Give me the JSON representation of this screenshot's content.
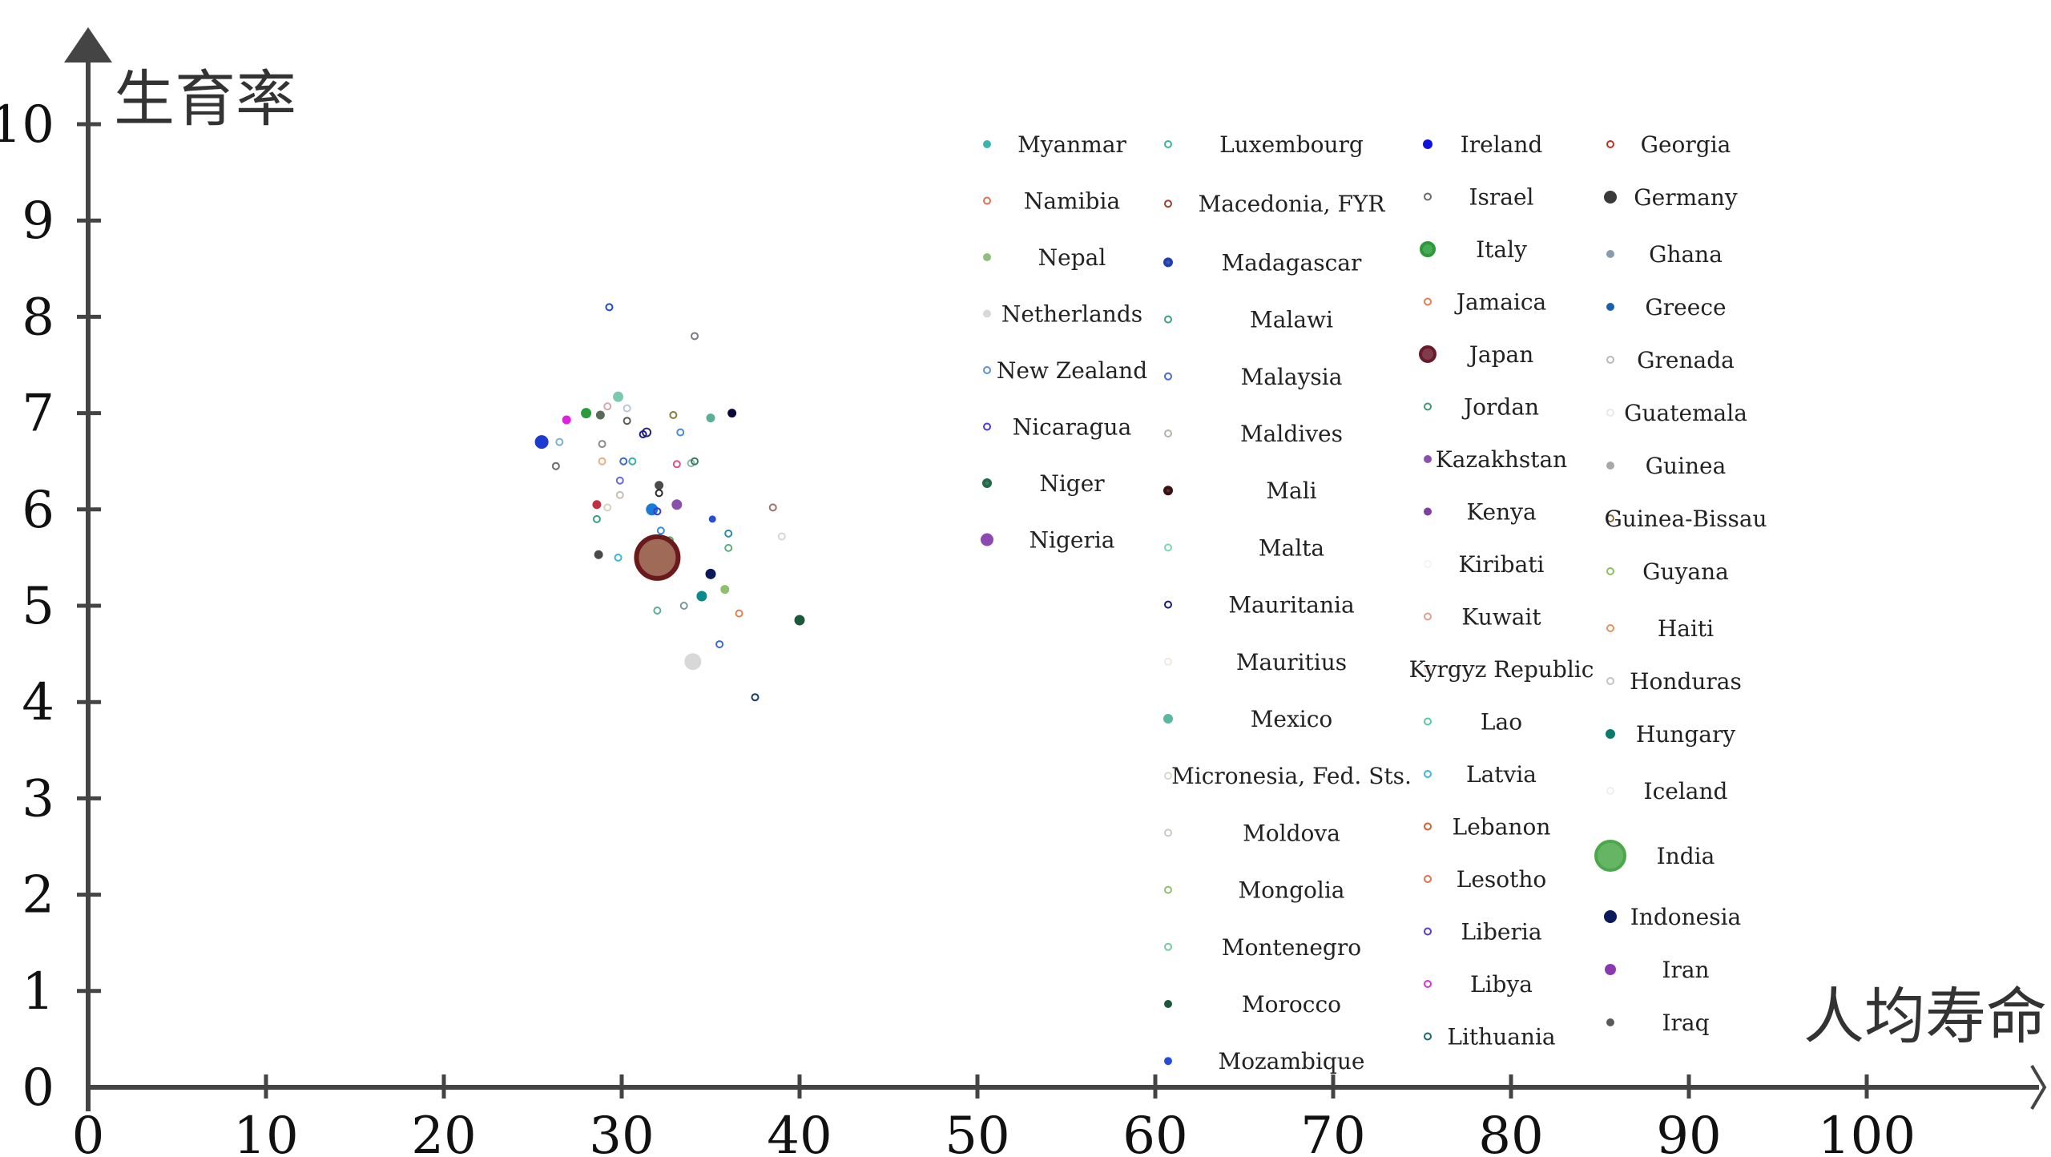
{
  "chart_data": {
    "type": "scatter",
    "title": "",
    "xlabel": "人均寿命",
    "ylabel": "生育率",
    "xlim": [
      0,
      110
    ],
    "ylim": [
      0,
      11
    ],
    "x_ticks": [
      0,
      10,
      20,
      30,
      40,
      50,
      60,
      70,
      80,
      90,
      100
    ],
    "y_ticks": [
      0,
      1,
      2,
      3,
      4,
      5,
      6,
      7,
      8,
      9,
      10
    ],
    "grid": false,
    "legend_placement": "upper-right",
    "legend_columns": [
      [
        "Myanmar",
        "Namibia",
        "Nepal",
        "Netherlands",
        "New Zealand",
        "Nicaragua",
        "Niger",
        "Nigeria"
      ],
      [
        "Luxembourg",
        "Macedonia, FYR",
        "Madagascar",
        "Malawi",
        "Malaysia",
        "Maldives",
        "Mali",
        "Malta",
        "Mauritania",
        "Mauritius",
        "Mexico",
        "Micronesia, Fed. Sts.",
        "Moldova",
        "Mongolia",
        "Montenegro",
        "Morocco",
        "Mozambique"
      ],
      [
        "Ireland",
        "Israel",
        "Italy",
        "Jamaica",
        "Japan",
        "Jordan",
        "Kazakhstan",
        "Kenya",
        "Kiribati",
        "Kuwait",
        "Kyrgyz Republic",
        "Lao",
        "Latvia",
        "Lebanon",
        "Lesotho",
        "Liberia",
        "Libya",
        "Lithuania"
      ],
      [
        "Georgia",
        "Germany",
        "Ghana",
        "Greece",
        "Grenada",
        "Guatemala",
        "Guinea",
        "Guinea-Bissau",
        "Guyana",
        "Haiti",
        "Honduras",
        "Hungary",
        "Iceland",
        "India",
        "Indonesia",
        "Iran",
        "Iraq"
      ]
    ],
    "series": [
      {
        "name": "Myanmar",
        "color": "#3ab5b0",
        "filled": true,
        "size": 5
      },
      {
        "name": "Namibia",
        "color": "#e07050",
        "filled": false,
        "size": 4
      },
      {
        "name": "Nepal",
        "color": "#8fbf7a",
        "filled": true,
        "size": 5
      },
      {
        "name": "Netherlands",
        "color": "#d8d8d8",
        "filled": true,
        "size": 5
      },
      {
        "name": "New Zealand",
        "color": "#5b8fd8",
        "filled": false,
        "size": 4
      },
      {
        "name": "Nicaragua",
        "color": "#4a3ad8",
        "filled": false,
        "size": 4
      },
      {
        "name": "Niger",
        "color": "#1f6b4a",
        "filled": true,
        "size": 4,
        "edge": true
      },
      {
        "name": "Nigeria",
        "color": "#8a4ab0",
        "filled": true,
        "size": 8
      },
      {
        "name": "Luxembourg",
        "color": "#3ab59a",
        "filled": false,
        "size": 4
      },
      {
        "name": "Macedonia, FYR",
        "color": "#9a4030",
        "filled": false,
        "size": 4
      },
      {
        "name": "Madagascar",
        "color": "#2040b0",
        "filled": true,
        "size": 4,
        "edge": true
      },
      {
        "name": "Malawi",
        "color": "#3aa080",
        "filled": false,
        "size": 4
      },
      {
        "name": "Malaysia",
        "color": "#4a6ad8",
        "filled": false,
        "size": 4
      },
      {
        "name": "Maldives",
        "color": "#b8b0a8",
        "filled": false,
        "size": 4
      },
      {
        "name": "Mali",
        "color": "#3a1010",
        "filled": true,
        "size": 4,
        "edge": true
      },
      {
        "name": "Malta",
        "color": "#7ad8b0",
        "filled": false,
        "size": 4
      },
      {
        "name": "Mauritania",
        "color": "#1a1a70",
        "filled": false,
        "size": 4
      },
      {
        "name": "Mauritius",
        "color": "#f0e8e0",
        "filled": false,
        "size": 4
      },
      {
        "name": "Mexico",
        "color": "#5ab8a0",
        "filled": true,
        "size": 6
      },
      {
        "name": "Micronesia, Fed. Sts.",
        "color": "#d8d8d0",
        "filled": false,
        "size": 4
      },
      {
        "name": "Moldova",
        "color": "#d0c8c0",
        "filled": false,
        "size": 4
      },
      {
        "name": "Mongolia",
        "color": "#8ac070",
        "filled": false,
        "size": 4
      },
      {
        "name": "Montenegro",
        "color": "#7ac8a0",
        "filled": false,
        "size": 4
      },
      {
        "name": "Morocco",
        "color": "#1a5a3a",
        "filled": true,
        "size": 5
      },
      {
        "name": "Mozambique",
        "color": "#2a4ad8",
        "filled": true,
        "size": 5
      },
      {
        "name": "Ireland",
        "color": "#1010e0",
        "filled": true,
        "size": 6
      },
      {
        "name": "Israel",
        "color": "#6a6a6a",
        "filled": false,
        "size": 4
      },
      {
        "name": "Italy",
        "color": "#2a9a3a",
        "filled": true,
        "size": 8,
        "edge": true
      },
      {
        "name": "Jamaica",
        "color": "#e08050",
        "filled": false,
        "size": 4
      },
      {
        "name": "Japan",
        "color": "#6a1a2a",
        "filled": true,
        "size": 9,
        "edge": true
      },
      {
        "name": "Jordan",
        "color": "#3a9a70",
        "filled": false,
        "size": 4
      },
      {
        "name": "Kazakhstan",
        "color": "#8a50b0",
        "filled": true,
        "size": 5
      },
      {
        "name": "Kenya",
        "color": "#8040a0",
        "filled": true,
        "size": 5
      },
      {
        "name": "Kiribati",
        "color": "#f4f4f4",
        "filled": false,
        "size": 4
      },
      {
        "name": "Kuwait",
        "color": "#e0a090",
        "filled": false,
        "size": 4
      },
      {
        "name": "Kyrgyz Republic",
        "color": "#f0d8d0",
        "filled": false,
        "size": 4
      },
      {
        "name": "Lao",
        "color": "#5ac8a8",
        "filled": false,
        "size": 4
      },
      {
        "name": "Latvia",
        "color": "#3ab8d8",
        "filled": false,
        "size": 4
      },
      {
        "name": "Lebanon",
        "color": "#d06030",
        "filled": false,
        "size": 4
      },
      {
        "name": "Lesotho",
        "color": "#e07050",
        "filled": false,
        "size": 4
      },
      {
        "name": "Liberia",
        "color": "#5a3ad8",
        "filled": false,
        "size": 4
      },
      {
        "name": "Libya",
        "color": "#e030d0",
        "filled": false,
        "size": 4
      },
      {
        "name": "Lithuania",
        "color": "#1a6a6a",
        "filled": false,
        "size": 4
      },
      {
        "name": "Georgia",
        "color": "#c03020",
        "filled": false,
        "size": 4
      },
      {
        "name": "Germany",
        "color": "#3a3a3a",
        "filled": true,
        "size": 8
      },
      {
        "name": "Ghana",
        "color": "#8a9ab0",
        "filled": true,
        "size": 5
      },
      {
        "name": "Greece",
        "color": "#1a60b0",
        "filled": true,
        "size": 5
      },
      {
        "name": "Grenada",
        "color": "#b8b8b8",
        "filled": false,
        "size": 4
      },
      {
        "name": "Guatemala",
        "color": "#e8e8e8",
        "filled": false,
        "size": 4
      },
      {
        "name": "Guinea",
        "color": "#a8a8a8",
        "filled": true,
        "size": 5
      },
      {
        "name": "Guinea-Bissau",
        "color": "#8a6a3a",
        "filled": false,
        "size": 4
      },
      {
        "name": "Guyana",
        "color": "#8ac05a",
        "filled": false,
        "size": 4
      },
      {
        "name": "Haiti",
        "color": "#e89060",
        "filled": false,
        "size": 4
      },
      {
        "name": "Honduras",
        "color": "#c8c0c8",
        "filled": false,
        "size": 4
      },
      {
        "name": "Hungary",
        "color": "#0a7a6a",
        "filled": true,
        "size": 6
      },
      {
        "name": "Iceland",
        "color": "#eef0f0",
        "filled": false,
        "size": 4
      },
      {
        "name": "India",
        "color": "#4aa84a",
        "filled": true,
        "size": 18,
        "edge": true
      },
      {
        "name": "Indonesia",
        "color": "#0a1a5a",
        "filled": true,
        "size": 8
      },
      {
        "name": "Iran",
        "color": "#8a3ab0",
        "filled": true,
        "size": 7
      },
      {
        "name": "Iraq",
        "color": "#5a5a5a",
        "filled": true,
        "size": 5
      }
    ],
    "points": [
      {
        "x": 29.3,
        "y": 8.1,
        "color": "#1a50c0",
        "filled": false,
        "size": 4
      },
      {
        "x": 34.1,
        "y": 7.8,
        "color": "#7a7a8a",
        "filled": false,
        "size": 4
      },
      {
        "x": 29.8,
        "y": 7.17,
        "color": "#7ac8b0",
        "filled": true,
        "size": 6
      },
      {
        "x": 29.2,
        "y": 7.07,
        "color": "#d8a8b0",
        "filled": false,
        "size": 4
      },
      {
        "x": 30.3,
        "y": 7.05,
        "color": "#b8c8d8",
        "filled": false,
        "size": 4
      },
      {
        "x": 28.0,
        "y": 7.0,
        "color": "#2a9a3a",
        "filled": true,
        "size": 6
      },
      {
        "x": 28.8,
        "y": 6.98,
        "color": "#5a6a5a",
        "filled": true,
        "size": 5
      },
      {
        "x": 32.9,
        "y": 6.98,
        "color": "#8a7a3a",
        "filled": false,
        "size": 4
      },
      {
        "x": 35.0,
        "y": 6.95,
        "color": "#5ab090",
        "filled": true,
        "size": 5
      },
      {
        "x": 36.2,
        "y": 7.0,
        "color": "#0a0a3a",
        "filled": true,
        "size": 5
      },
      {
        "x": 26.9,
        "y": 6.93,
        "color": "#e020e0",
        "filled": true,
        "size": 5
      },
      {
        "x": 30.3,
        "y": 6.92,
        "color": "#5a5a5a",
        "filled": false,
        "size": 4
      },
      {
        "x": 31.4,
        "y": 6.8,
        "color": "#2a2a6a",
        "filled": false,
        "size": 5
      },
      {
        "x": 31.2,
        "y": 6.78,
        "color": "#1a1a9a",
        "filled": false,
        "size": 4
      },
      {
        "x": 33.3,
        "y": 6.8,
        "color": "#4a8ad8",
        "filled": false,
        "size": 4
      },
      {
        "x": 25.5,
        "y": 6.7,
        "color": "#1a3ad0",
        "filled": true,
        "size": 8
      },
      {
        "x": 26.5,
        "y": 6.7,
        "color": "#7ab0d8",
        "filled": false,
        "size": 4
      },
      {
        "x": 28.9,
        "y": 6.68,
        "color": "#8a8a8a",
        "filled": false,
        "size": 4
      },
      {
        "x": 30.1,
        "y": 6.5,
        "color": "#3a6ad8",
        "filled": false,
        "size": 4
      },
      {
        "x": 28.9,
        "y": 6.5,
        "color": "#e0b090",
        "filled": false,
        "size": 4
      },
      {
        "x": 30.6,
        "y": 6.5,
        "color": "#3ab0a0",
        "filled": false,
        "size": 4
      },
      {
        "x": 33.1,
        "y": 6.47,
        "color": "#e0508a",
        "filled": false,
        "size": 4
      },
      {
        "x": 33.9,
        "y": 6.48,
        "color": "#8ab8a8",
        "filled": false,
        "size": 4
      },
      {
        "x": 34.1,
        "y": 6.5,
        "color": "#3a7a6a",
        "filled": false,
        "size": 4
      },
      {
        "x": 26.3,
        "y": 6.45,
        "color": "#6a6a6a",
        "filled": false,
        "size": 4
      },
      {
        "x": 29.9,
        "y": 6.3,
        "color": "#6a6ad8",
        "filled": false,
        "size": 4
      },
      {
        "x": 32.1,
        "y": 6.25,
        "color": "#4a4a4a",
        "filled": true,
        "size": 5
      },
      {
        "x": 32.1,
        "y": 6.17,
        "color": "#2a2a2a",
        "filled": false,
        "size": 4
      },
      {
        "x": 29.9,
        "y": 6.15,
        "color": "#c8c0b8",
        "filled": false,
        "size": 4
      },
      {
        "x": 28.6,
        "y": 6.05,
        "color": "#c03040",
        "filled": true,
        "size": 5
      },
      {
        "x": 33.1,
        "y": 6.05,
        "color": "#8a50b0",
        "filled": true,
        "size": 6
      },
      {
        "x": 29.2,
        "y": 6.02,
        "color": "#d8d0c0",
        "filled": false,
        "size": 4
      },
      {
        "x": 31.7,
        "y": 6.0,
        "color": "#1a7ad8",
        "filled": true,
        "size": 7
      },
      {
        "x": 32.0,
        "y": 5.98,
        "color": "#3a3ad8",
        "filled": false,
        "size": 4
      },
      {
        "x": 38.5,
        "y": 6.02,
        "color": "#a07070",
        "filled": false,
        "size": 4
      },
      {
        "x": 28.6,
        "y": 5.9,
        "color": "#3aa080",
        "filled": false,
        "size": 4
      },
      {
        "x": 35.1,
        "y": 5.9,
        "color": "#2a4ad8",
        "filled": true,
        "size": 4
      },
      {
        "x": 32.2,
        "y": 5.78,
        "color": "#3a8ad8",
        "filled": false,
        "size": 4
      },
      {
        "x": 36.0,
        "y": 5.75,
        "color": "#2a8ab0",
        "filled": false,
        "size": 4
      },
      {
        "x": 39.0,
        "y": 5.72,
        "color": "#d8d8d0",
        "filled": false,
        "size": 4
      },
      {
        "x": 32.7,
        "y": 5.68,
        "color": "#5aa85a",
        "filled": false,
        "size": 4
      },
      {
        "x": 36.0,
        "y": 5.6,
        "color": "#5ab080",
        "filled": false,
        "size": 4
      },
      {
        "x": 28.7,
        "y": 5.53,
        "color": "#4a4a4a",
        "filled": true,
        "size": 5
      },
      {
        "x": 29.8,
        "y": 5.5,
        "color": "#3ab8d8",
        "filled": false,
        "size": 4
      },
      {
        "x": 32.0,
        "y": 5.5,
        "color": "#a06a58",
        "filled": true,
        "size": 26,
        "stroke": "#6a1a1a"
      },
      {
        "x": 35.0,
        "y": 5.33,
        "color": "#0a1a5a",
        "filled": true,
        "size": 6
      },
      {
        "x": 35.8,
        "y": 5.17,
        "color": "#8ac070",
        "filled": true,
        "size": 5
      },
      {
        "x": 34.5,
        "y": 5.1,
        "color": "#0a8a8a",
        "filled": true,
        "size": 6
      },
      {
        "x": 33.5,
        "y": 5.0,
        "color": "#7a9aa0",
        "filled": false,
        "size": 4
      },
      {
        "x": 32.0,
        "y": 4.95,
        "color": "#5ab090",
        "filled": false,
        "size": 4
      },
      {
        "x": 36.6,
        "y": 4.92,
        "color": "#e08050",
        "filled": false,
        "size": 4
      },
      {
        "x": 40.0,
        "y": 4.85,
        "color": "#1a5a3a",
        "filled": true,
        "size": 6
      },
      {
        "x": 35.5,
        "y": 4.6,
        "color": "#3a6ad8",
        "filled": false,
        "size": 4
      },
      {
        "x": 34.0,
        "y": 4.42,
        "color": "#d8d8d8",
        "filled": true,
        "size": 10
      },
      {
        "x": 37.5,
        "y": 4.05,
        "color": "#1a3a6a",
        "filled": false,
        "size": 4
      }
    ]
  }
}
